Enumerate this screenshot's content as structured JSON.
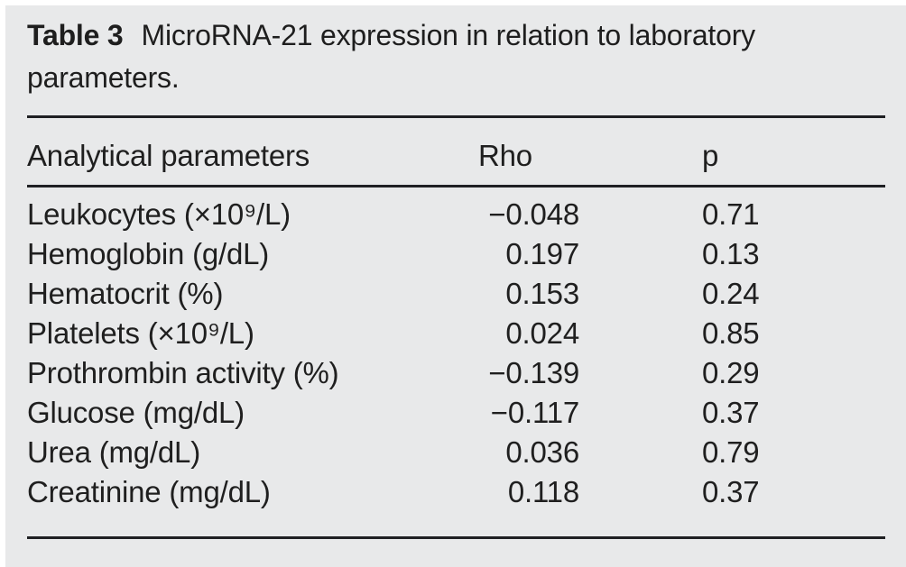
{
  "colors": {
    "panel_background": "#e8e9ea",
    "text": "#1f1f1f",
    "rule": "#1f2023"
  },
  "table": {
    "caption": {
      "label": "Table 3",
      "text": "MicroRNA-21 expression in relation to laboratory parameters."
    },
    "columns": {
      "parameter": "Analytical parameters",
      "rho": "Rho",
      "p": "p"
    },
    "rows": [
      {
        "parameter": "Leukocytes (×10⁹/L)",
        "rho": "−0.048",
        "p": "0.71"
      },
      {
        "parameter": "Hemoglobin (g/dL)",
        "rho": "0.197",
        "p": "0.13"
      },
      {
        "parameter": "Hematocrit (%)",
        "rho": "0.153",
        "p": "0.24"
      },
      {
        "parameter": "Platelets (×10⁹/L)",
        "rho": "0.024",
        "p": "0.85"
      },
      {
        "parameter": "Prothrombin activity (%)",
        "rho": "−0.139",
        "p": "0.29"
      },
      {
        "parameter": "Glucose (mg/dL)",
        "rho": "−0.117",
        "p": "0.37"
      },
      {
        "parameter": "Urea (mg/dL)",
        "rho": "0.036",
        "p": "0.79"
      },
      {
        "parameter": "Creatinine (mg/dL)",
        "rho": "0.118",
        "p": "0.37"
      }
    ]
  }
}
